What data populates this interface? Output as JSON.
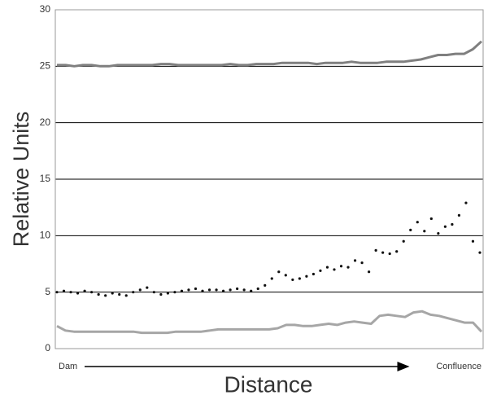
{
  "chart_data": {
    "type": "scatter",
    "y_label": "Relative Units",
    "x_label": "Distance",
    "x_start_label": "Dam",
    "x_end_label": "Confluence",
    "ylim": [
      0,
      30
    ],
    "yticks": [
      0,
      5,
      10,
      15,
      20,
      25,
      30
    ],
    "grid": true,
    "series": [
      {
        "color": "#7f7f7f",
        "style": "line",
        "values": [
          25.1,
          25.1,
          25.0,
          25.1,
          25.1,
          25.0,
          25.0,
          25.1,
          25.1,
          25.1,
          25.1,
          25.1,
          25.2,
          25.2,
          25.1,
          25.1,
          25.1,
          25.1,
          25.1,
          25.1,
          25.2,
          25.1,
          25.1,
          25.2,
          25.2,
          25.2,
          25.3,
          25.3,
          25.3,
          25.3,
          25.2,
          25.3,
          25.3,
          25.3,
          25.4,
          25.3,
          25.3,
          25.3,
          25.4,
          25.4,
          25.4,
          25.5,
          25.6,
          25.8,
          26.0,
          26.0,
          26.1,
          26.1,
          26.5,
          27.2
        ]
      },
      {
        "color": "#111111",
        "style": "dots",
        "values": [
          5.0,
          5.1,
          5.0,
          4.9,
          5.1,
          5.0,
          4.8,
          4.7,
          4.9,
          4.8,
          4.7,
          5.0,
          5.2,
          5.4,
          5.0,
          4.8,
          4.9,
          5.0,
          5.1,
          5.2,
          5.3,
          5.1,
          5.2,
          5.2,
          5.1,
          5.2,
          5.3,
          5.2,
          5.1,
          5.3,
          5.6,
          6.2,
          6.8,
          6.5,
          6.1,
          6.2,
          6.4,
          6.6,
          6.9,
          7.2,
          7.0,
          7.3,
          7.2,
          7.8,
          7.6,
          6.8,
          8.7,
          8.5,
          8.4,
          8.6,
          9.5,
          10.5,
          11.2,
          10.4,
          11.5,
          10.2,
          10.8,
          11.0,
          11.8,
          12.9,
          9.5,
          8.5
        ]
      },
      {
        "color": "#a6a6a6",
        "style": "line",
        "values": [
          2.0,
          1.6,
          1.5,
          1.5,
          1.5,
          1.5,
          1.5,
          1.5,
          1.5,
          1.5,
          1.4,
          1.4,
          1.4,
          1.4,
          1.5,
          1.5,
          1.5,
          1.5,
          1.6,
          1.7,
          1.7,
          1.7,
          1.7,
          1.7,
          1.7,
          1.7,
          1.8,
          2.1,
          2.1,
          2.0,
          2.0,
          2.1,
          2.2,
          2.1,
          2.3,
          2.4,
          2.3,
          2.2,
          2.9,
          3.0,
          2.9,
          2.8,
          3.2,
          3.3,
          3.0,
          2.9,
          2.7,
          2.5,
          2.3,
          2.3,
          1.5
        ]
      }
    ]
  }
}
